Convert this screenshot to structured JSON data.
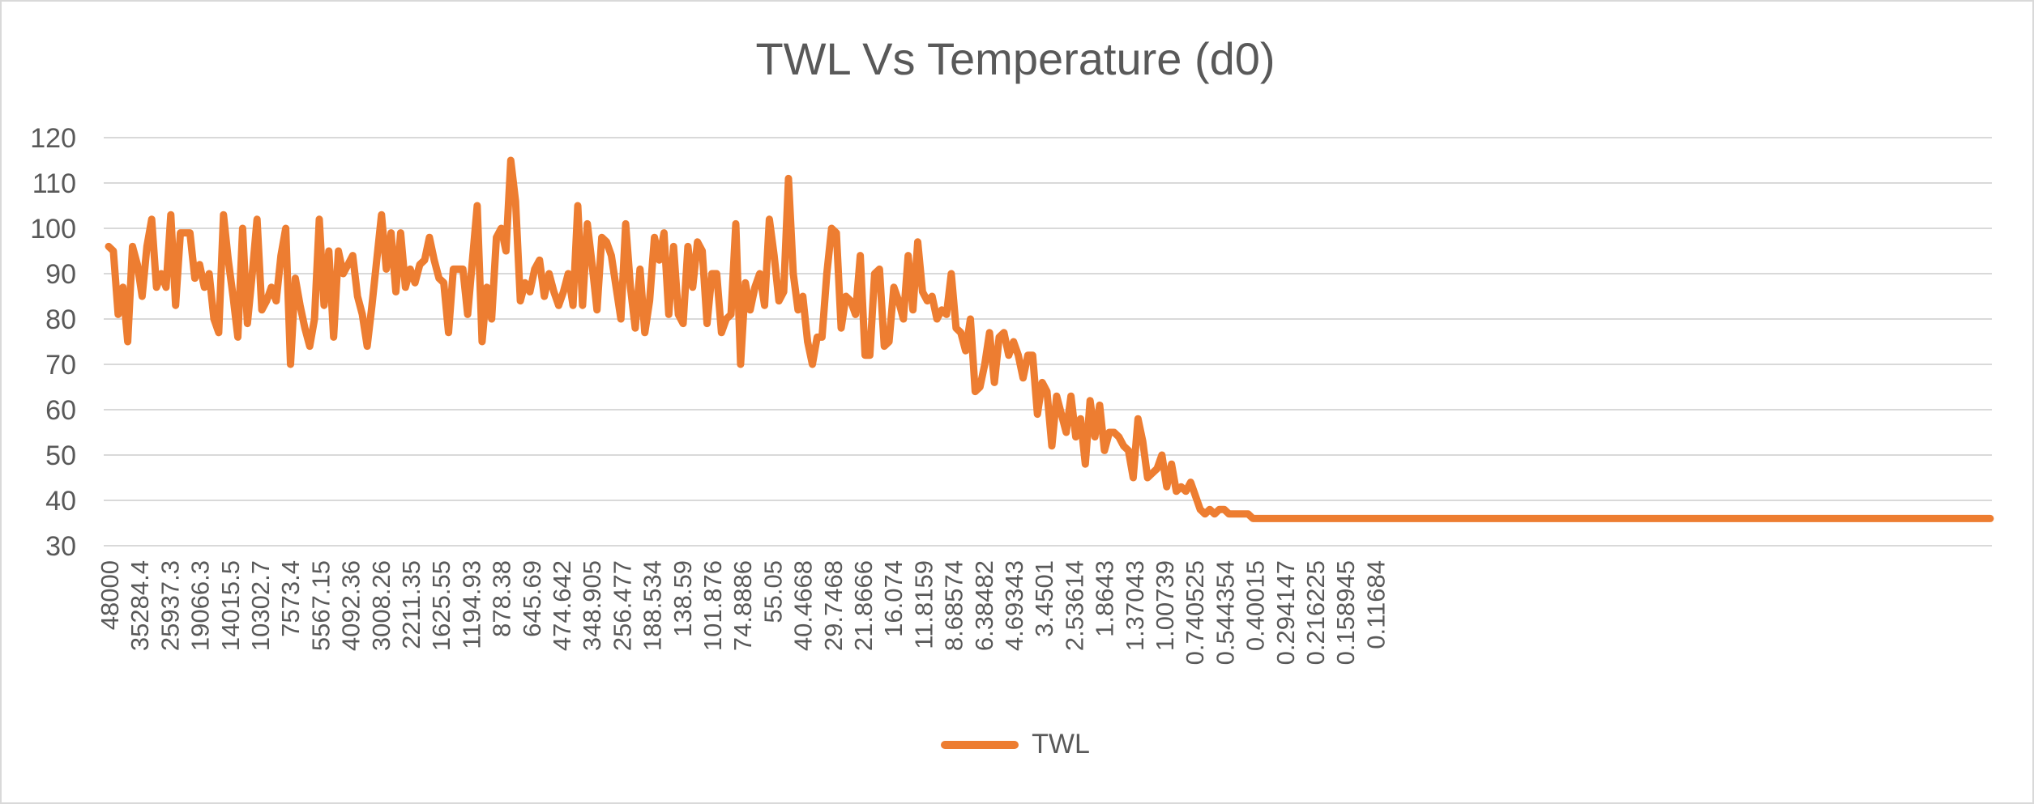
{
  "chart_data": {
    "type": "line",
    "title": "TWL Vs Temperature (d0)",
    "xlabel": "",
    "ylabel": "",
    "ylim": [
      30,
      120
    ],
    "y_ticks": [
      30,
      40,
      50,
      60,
      70,
      80,
      90,
      100,
      110,
      120
    ],
    "grid": true,
    "legend_position": "bottom",
    "series_color": "#ed7d31",
    "x_tick_labels": [
      "48000",
      "35284.4",
      "25937.3",
      "19066.3",
      "14015.5",
      "10302.7",
      "7573.4",
      "5567.15",
      "4092.36",
      "3008.26",
      "2211.35",
      "1625.55",
      "1194.93",
      "878.38",
      "645.69",
      "474.642",
      "348.905",
      "256.477",
      "188.534",
      "138.59",
      "101.876",
      "74.8886",
      "55.05",
      "40.4668",
      "29.7468",
      "21.8666",
      "16.074",
      "11.8159",
      "8.68574",
      "6.38482",
      "4.69343",
      "3.4501",
      "2.53614",
      "1.8643",
      "1.37043",
      "1.00739",
      "0.740525",
      "0.544354",
      "0.40015",
      "0.294147",
      "0.216225",
      "0.158945",
      "0.11684"
    ],
    "series": [
      {
        "name": "TWL",
        "values": [
          96,
          95,
          81,
          87,
          75,
          96,
          92,
          85,
          96,
          102,
          87,
          90,
          87,
          103,
          83,
          99,
          99,
          99,
          89,
          92,
          87,
          90,
          80,
          77,
          103,
          93,
          85,
          76,
          100,
          79,
          90,
          102,
          82,
          84,
          87,
          84,
          94,
          100,
          70,
          89,
          83,
          78,
          74,
          80,
          102,
          83,
          95,
          76,
          95,
          90,
          92,
          94,
          85,
          81,
          74,
          83,
          93,
          103,
          91,
          99,
          86,
          99,
          87,
          91,
          88,
          92,
          93,
          98,
          93,
          89,
          88,
          77,
          91,
          91,
          91,
          81,
          93,
          105,
          75,
          87,
          80,
          98,
          100,
          95,
          115,
          106,
          84,
          88,
          86,
          91,
          93,
          85,
          90,
          86,
          83,
          86,
          90,
          83,
          105,
          83,
          101,
          92,
          82,
          98,
          97,
          94,
          87,
          80,
          101,
          87,
          78,
          91,
          77,
          84,
          98,
          93,
          99,
          81,
          96,
          81,
          79,
          96,
          87,
          97,
          95,
          79,
          90,
          90,
          77,
          80,
          81,
          101,
          70,
          88,
          82,
          87,
          90,
          83,
          102,
          94,
          84,
          86,
          111,
          90,
          82,
          85,
          75,
          70,
          76,
          76,
          90,
          100,
          99,
          78,
          85,
          84,
          81,
          94,
          72,
          72,
          90,
          91,
          74,
          75,
          87,
          84,
          80,
          94,
          82,
          97,
          86,
          84,
          85,
          80,
          82,
          81,
          90,
          78,
          77,
          73,
          80,
          64,
          65,
          70,
          77,
          66,
          76,
          77,
          72,
          75,
          72,
          67,
          72,
          72,
          59,
          66,
          64,
          52,
          63,
          59,
          55,
          63,
          54,
          58,
          48,
          62,
          54,
          61,
          51,
          55,
          55,
          54,
          52,
          51,
          45,
          58,
          53,
          45,
          46,
          47,
          50,
          43,
          48,
          42,
          43,
          42,
          44,
          41,
          38,
          37,
          38,
          37,
          38,
          38,
          37,
          37,
          37,
          37,
          37,
          36,
          36,
          36,
          36,
          36,
          36,
          36,
          36,
          36,
          36,
          36,
          36,
          36,
          36,
          36,
          36,
          36,
          36,
          36,
          36,
          36,
          36,
          36,
          36,
          36,
          36,
          36,
          36,
          36,
          36,
          36,
          36,
          36,
          36,
          36,
          36,
          36,
          36,
          36,
          36,
          36,
          36,
          36,
          36,
          36,
          36,
          36,
          36,
          36,
          36,
          36,
          36,
          36,
          36,
          36,
          36,
          36,
          36,
          36,
          36,
          36,
          36,
          36,
          36,
          36,
          36,
          36,
          36,
          36,
          36,
          36,
          36,
          36,
          36,
          36,
          36,
          36,
          36,
          36,
          36,
          36,
          36,
          36,
          36,
          36,
          36,
          36,
          36,
          36,
          36,
          36,
          36,
          36,
          36,
          36,
          36,
          36,
          36,
          36,
          36,
          36,
          36,
          36,
          36,
          36,
          36,
          36,
          36,
          36,
          36,
          36,
          36,
          36,
          36,
          36,
          36,
          36,
          36,
          36,
          36,
          36,
          36,
          36,
          36,
          36,
          36,
          36,
          36,
          36,
          36,
          36,
          36,
          36,
          36,
          36,
          36,
          36,
          36,
          36,
          36,
          36,
          36,
          36,
          36,
          36,
          36,
          36,
          36,
          36,
          36,
          36,
          36,
          36,
          36,
          36
        ]
      }
    ]
  }
}
